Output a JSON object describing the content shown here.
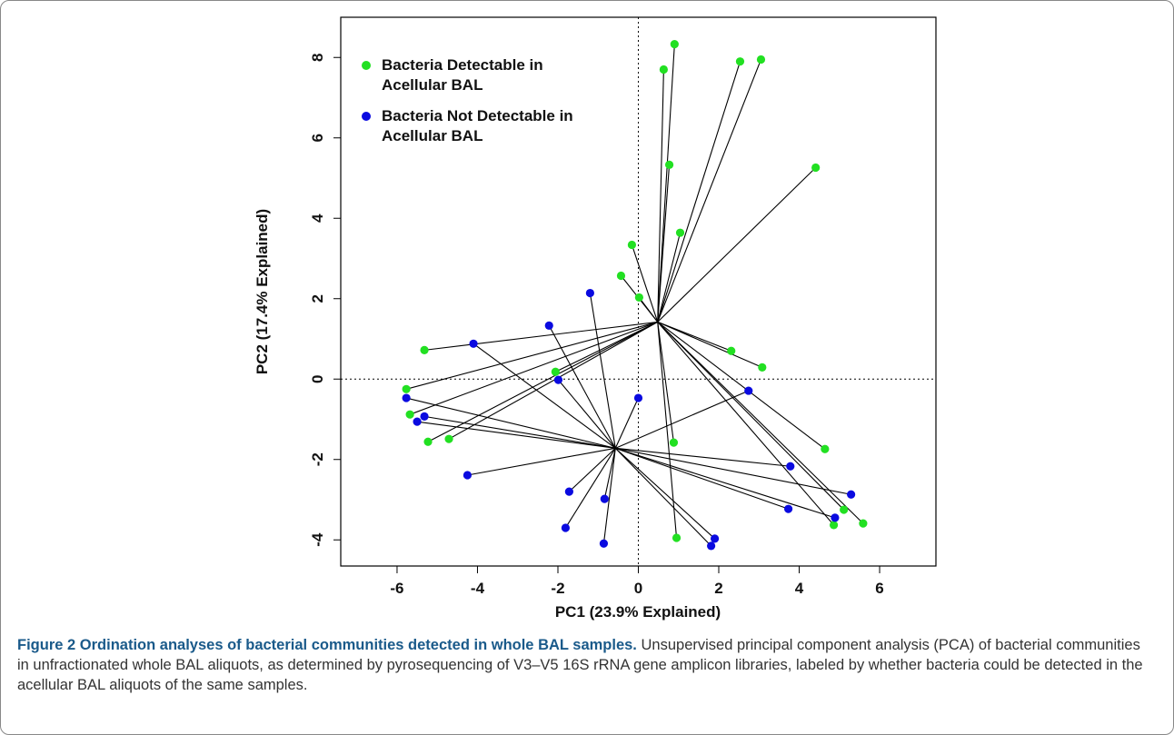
{
  "chart_data": {
    "type": "scatter",
    "x_label": "PC1 (23.9% Explained)",
    "y_label": "PC2 (17.4% Explained)",
    "xlim": [
      -7.4,
      7.4
    ],
    "ylim": [
      -4.65,
      9.0
    ],
    "xticks": [
      -6,
      -4,
      -2,
      0,
      2,
      4,
      6
    ],
    "yticks": [
      -4,
      -2,
      0,
      2,
      4,
      6,
      8
    ],
    "reference_x": [
      0
    ],
    "reference_y": [
      0
    ],
    "legend": "top-left",
    "series": [
      {
        "name": "Bacteria Detectable in Acellular BAL",
        "color": "#22e022",
        "centroid": [
          0.48,
          1.42
        ],
        "x": [
          0.9,
          0.63,
          2.53,
          3.05,
          0.77,
          4.41,
          1.04,
          -0.16,
          -0.43,
          0.02,
          -5.32,
          2.31,
          3.08,
          -2.06,
          -5.77,
          -5.68,
          -5.23,
          -4.71,
          0.88,
          4.64,
          5.11,
          5.59,
          4.86,
          0.95
        ],
        "values": [
          8.33,
          7.7,
          7.9,
          7.95,
          5.33,
          5.26,
          3.64,
          3.34,
          2.57,
          2.03,
          0.72,
          0.7,
          0.29,
          0.18,
          -0.25,
          -0.88,
          -1.56,
          -1.49,
          -1.58,
          -1.74,
          -3.25,
          -3.59,
          -3.63,
          -3.95
        ]
      },
      {
        "name": "Bacteria Not Detectable in Acellular BAL",
        "color": "#0a0ae0",
        "centroid": [
          -0.57,
          -1.72
        ],
        "x": [
          -1.2,
          -4.1,
          -2.22,
          -1.99,
          0.0,
          2.74,
          -5.77,
          -5.32,
          -5.5,
          -4.25,
          -1.72,
          -0.84,
          -1.81,
          -0.86,
          1.81,
          1.9,
          3.78,
          3.73,
          5.29,
          4.89
        ],
        "values": [
          2.14,
          0.88,
          1.33,
          -0.02,
          -0.47,
          -0.29,
          -0.47,
          -0.93,
          -1.06,
          -2.39,
          -2.8,
          -2.98,
          -3.7,
          -4.09,
          -4.15,
          -3.97,
          -2.17,
          -3.23,
          -2.87,
          -3.45
        ]
      }
    ]
  },
  "caption": {
    "label": "Figure 2",
    "title": "Ordination analyses of bacterial communities detected in whole BAL samples.",
    "text": "Unsupervised principal component analysis (PCA) of bacterial communities in unfractionated whole BAL aliquots, as determined by pyrosequencing of V3–V5 16S rRNA gene amplicon libraries, labeled by whether bacteria could be detected in the acellular BAL aliquots of the same samples."
  }
}
